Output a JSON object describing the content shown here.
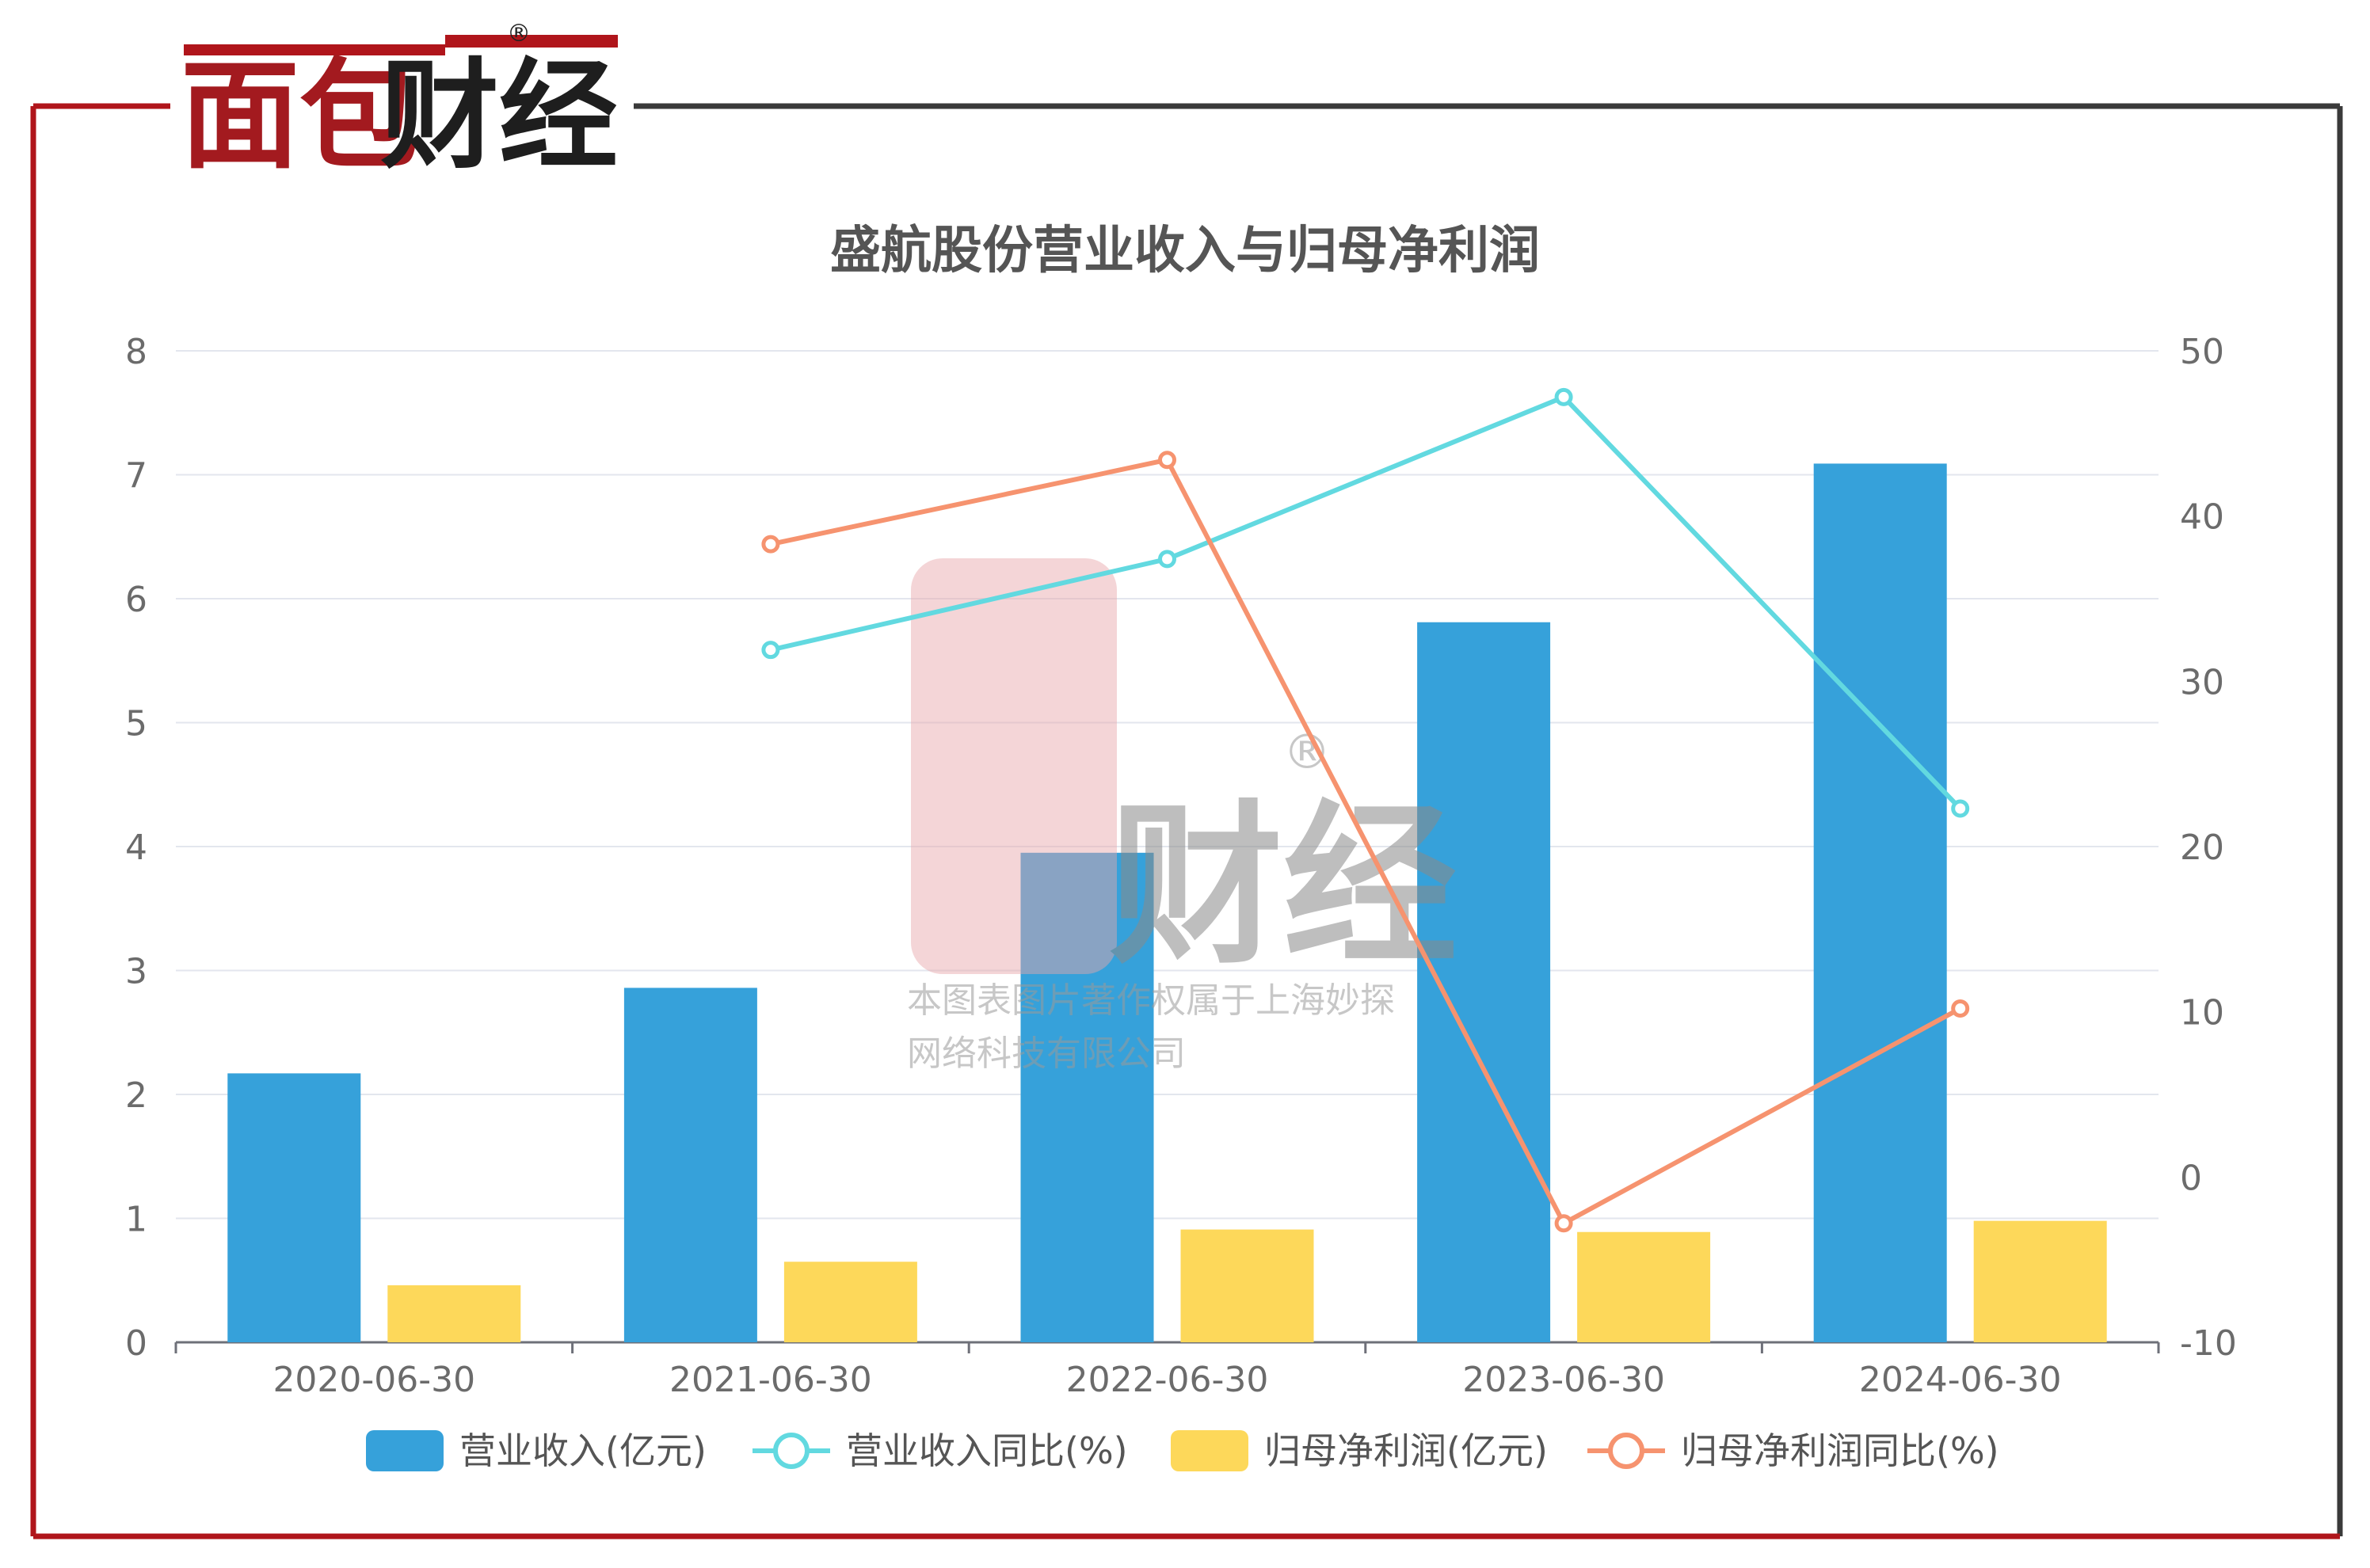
{
  "brand": {
    "logo_text": "面包财经",
    "registered_mark": "®",
    "watermark_line1": "本图表图片著作权属于上海妙探",
    "watermark_line2": "网络科技有限公司"
  },
  "colors": {
    "frame_red": "#b0151b",
    "frame_dark": "#3a3a3a",
    "revenue_bar": "#36a1da",
    "profit_bar": "#fdd85a",
    "revenue_yoy_line": "#62d9e0",
    "profit_yoy_line": "#f6936f",
    "grid": "#e3e6ee",
    "axis_text": "#6b6b6b",
    "title_text": "#555555"
  },
  "chart_data": {
    "type": "bar",
    "title": "盛航股份营业收入与归母净利润",
    "categories": [
      "2020-06-30",
      "2021-06-30",
      "2022-06-30",
      "2023-06-30",
      "2024-06-30"
    ],
    "y_left": {
      "min": 0,
      "max": 8,
      "ticks": [
        "0",
        "1",
        "2",
        "3",
        "4",
        "5",
        "6",
        "7",
        "8"
      ]
    },
    "y_right": {
      "min": -10,
      "max": 50,
      "ticks": [
        "-10",
        "0",
        "10",
        "20",
        "30",
        "40",
        "50"
      ]
    },
    "grid": true,
    "legend_position": "bottom",
    "series": [
      {
        "name": "营业收入(亿元)",
        "type": "bar",
        "axis": "left",
        "values": [
          2.17,
          2.86,
          3.95,
          5.81,
          7.09
        ]
      },
      {
        "name": "营业收入同比(%)",
        "type": "line",
        "axis": "right",
        "values": [
          null,
          31.9,
          37.4,
          47.2,
          22.3
        ]
      },
      {
        "name": "归母净利润(亿元)",
        "type": "bar",
        "axis": "left",
        "values": [
          0.46,
          0.65,
          0.91,
          0.89,
          0.98
        ]
      },
      {
        "name": "归母净利润同比(%)",
        "type": "line",
        "axis": "right",
        "values": [
          null,
          38.3,
          43.4,
          -2.8,
          10.2
        ]
      }
    ]
  }
}
